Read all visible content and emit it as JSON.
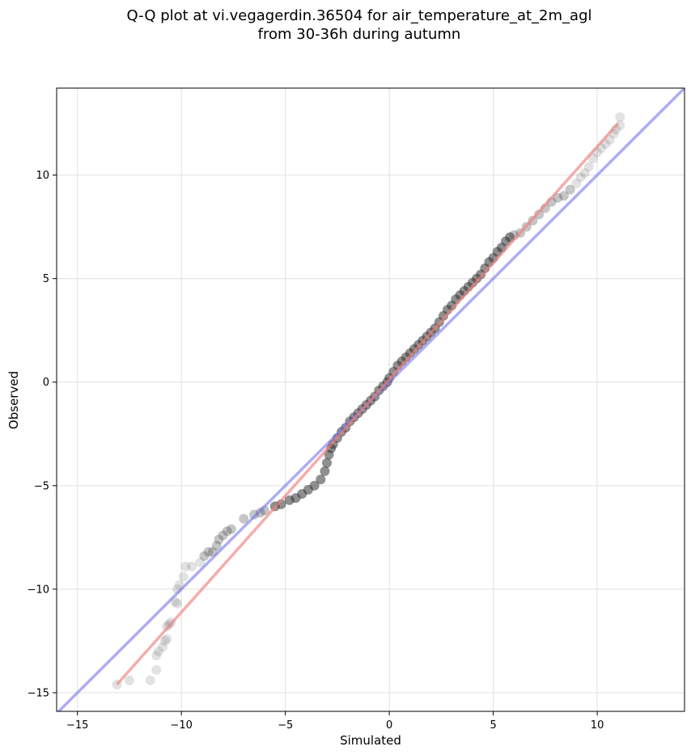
{
  "chart_data": {
    "type": "scatter",
    "title_lines": [
      "Q-Q plot at vi.vegagerdin.36504 for air_temperature_at_2m_agl",
      "from 30-36h during autumn"
    ],
    "xlabel": "Simulated",
    "ylabel": "Observed",
    "xlim": [
      -16,
      14.2
    ],
    "ylim": [
      -15.9,
      14.2
    ],
    "xticks": [
      -15,
      -10,
      -5,
      0,
      5,
      10
    ],
    "yticks": [
      -15,
      -10,
      -5,
      0,
      5,
      10
    ],
    "xtick_labels": [
      "−15",
      "−10",
      "−5",
      "0",
      "5",
      "10"
    ],
    "ytick_labels": [
      "−15",
      "−10",
      "−5",
      "0",
      "5",
      "10"
    ],
    "grid": true,
    "points": [
      [
        -13.1,
        -14.6
      ],
      [
        -12.5,
        -14.4
      ],
      [
        -11.5,
        -14.4
      ],
      [
        -11.2,
        -13.9
      ],
      [
        -11.2,
        -13.2
      ],
      [
        -11.1,
        -13.0
      ],
      [
        -10.9,
        -12.8
      ],
      [
        -10.8,
        -12.5
      ],
      [
        -10.7,
        -12.4
      ],
      [
        -10.7,
        -11.8
      ],
      [
        -10.6,
        -11.7
      ],
      [
        -10.5,
        -11.6
      ],
      [
        -10.2,
        -10.7
      ],
      [
        -10.3,
        -10.6
      ],
      [
        -10.2,
        -10.0
      ],
      [
        -10.1,
        -9.8
      ],
      [
        -9.9,
        -9.4
      ],
      [
        -9.8,
        -8.9
      ],
      [
        -9.5,
        -8.9
      ],
      [
        -9.1,
        -8.7
      ],
      [
        -8.9,
        -8.4
      ],
      [
        -8.7,
        -8.2
      ],
      [
        -8.5,
        -8.2
      ],
      [
        -8.3,
        -7.9
      ],
      [
        -8.2,
        -7.6
      ],
      [
        -8.0,
        -7.4
      ],
      [
        -7.8,
        -7.2
      ],
      [
        -7.6,
        -7.1
      ],
      [
        -7.0,
        -6.6
      ],
      [
        -6.5,
        -6.4
      ],
      [
        -6.2,
        -6.3
      ],
      [
        -6.0,
        -6.2
      ],
      [
        -5.5,
        -6.0
      ],
      [
        -5.2,
        -5.9
      ],
      [
        -4.8,
        -5.7
      ],
      [
        -4.5,
        -5.6
      ],
      [
        -4.2,
        -5.4
      ],
      [
        -3.9,
        -5.2
      ],
      [
        -3.6,
        -5.0
      ],
      [
        -3.3,
        -4.7
      ],
      [
        -3.1,
        -4.3
      ],
      [
        -3.0,
        -3.9
      ],
      [
        -2.9,
        -3.5
      ],
      [
        -2.8,
        -3.2
      ],
      [
        -2.7,
        -3.0
      ],
      [
        -2.5,
        -2.7
      ],
      [
        -2.3,
        -2.4
      ],
      [
        -2.1,
        -2.2
      ],
      [
        -1.9,
        -1.9
      ],
      [
        -1.7,
        -1.7
      ],
      [
        -1.5,
        -1.5
      ],
      [
        -1.3,
        -1.3
      ],
      [
        -1.1,
        -1.1
      ],
      [
        -0.9,
        -0.9
      ],
      [
        -0.7,
        -0.7
      ],
      [
        -0.5,
        -0.4
      ],
      [
        -0.3,
        -0.2
      ],
      [
        -0.1,
        0.0
      ],
      [
        0.0,
        0.2
      ],
      [
        0.2,
        0.5
      ],
      [
        0.4,
        0.8
      ],
      [
        0.6,
        1.0
      ],
      [
        0.8,
        1.2
      ],
      [
        1.0,
        1.4
      ],
      [
        1.2,
        1.6
      ],
      [
        1.4,
        1.8
      ],
      [
        1.6,
        2.0
      ],
      [
        1.8,
        2.2
      ],
      [
        2.0,
        2.4
      ],
      [
        2.2,
        2.6
      ],
      [
        2.4,
        2.9
      ],
      [
        2.6,
        3.2
      ],
      [
        2.8,
        3.5
      ],
      [
        3.0,
        3.7
      ],
      [
        3.2,
        4.0
      ],
      [
        3.4,
        4.2
      ],
      [
        3.6,
        4.4
      ],
      [
        3.8,
        4.6
      ],
      [
        4.0,
        4.8
      ],
      [
        4.2,
        5.0
      ],
      [
        4.4,
        5.2
      ],
      [
        4.6,
        5.5
      ],
      [
        4.8,
        5.8
      ],
      [
        5.0,
        6.0
      ],
      [
        5.2,
        6.3
      ],
      [
        5.4,
        6.5
      ],
      [
        5.6,
        6.8
      ],
      [
        5.8,
        7.0
      ],
      [
        6.0,
        7.1
      ],
      [
        6.3,
        7.2
      ],
      [
        6.6,
        7.5
      ],
      [
        6.9,
        7.8
      ],
      [
        7.2,
        8.1
      ],
      [
        7.5,
        8.4
      ],
      [
        7.8,
        8.7
      ],
      [
        8.1,
        8.9
      ],
      [
        8.4,
        9.0
      ],
      [
        8.7,
        9.3
      ],
      [
        9.0,
        9.6
      ],
      [
        9.2,
        9.9
      ],
      [
        9.4,
        10.1
      ],
      [
        9.6,
        10.4
      ],
      [
        9.8,
        10.8
      ],
      [
        10.0,
        11.1
      ],
      [
        10.2,
        11.3
      ],
      [
        10.4,
        11.5
      ],
      [
        10.6,
        11.7
      ],
      [
        10.8,
        12.0
      ],
      [
        10.9,
        12.2
      ],
      [
        11.1,
        12.4
      ],
      [
        11.1,
        12.8
      ]
    ],
    "identity_line": {
      "x": [
        -16,
        14.2
      ],
      "y": [
        -16,
        14.2
      ],
      "color": "#7777ee"
    },
    "fit_line": {
      "x": [
        -13.1,
        11.0
      ],
      "y": [
        -14.6,
        12.5
      ],
      "color": "#f08080"
    }
  }
}
